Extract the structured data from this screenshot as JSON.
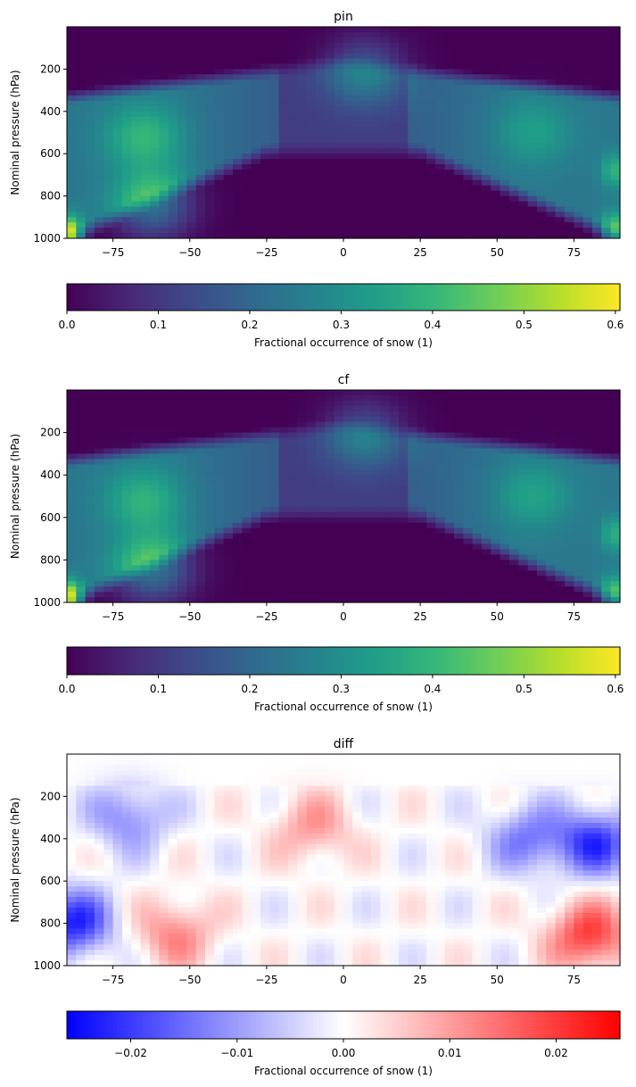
{
  "chart_data": [
    {
      "type": "heatmap",
      "title": "pin",
      "xlabel": "",
      "ylabel": "Nominal pressure (hPa)",
      "xlim": [
        -90,
        90
      ],
      "ylim": [
        1000,
        0
      ],
      "x_ticks": [
        -75,
        -50,
        -25,
        0,
        25,
        50,
        75
      ],
      "x_tick_labels": [
        "−75",
        "−50",
        "−25",
        "0",
        "25",
        "50",
        "75"
      ],
      "y_ticks": [
        200,
        400,
        600,
        800,
        1000
      ],
      "y_tick_labels": [
        "200",
        "400",
        "600",
        "800",
        "1000"
      ],
      "colormap": "viridis",
      "colorbar": {
        "label": "Fractional occurrence of snow (1)",
        "range": [
          0,
          0.605
        ],
        "ticks": [
          0,
          0.1,
          0.2,
          0.3,
          0.4,
          0.5,
          0.6
        ],
        "tick_labels": [
          "0.0",
          "0.1",
          "0.2",
          "0.3",
          "0.4",
          "0.5",
          "0.6"
        ]
      },
      "features": [
        {
          "lat": -62,
          "p": 840,
          "value": 0.42
        },
        {
          "lat": -65,
          "p": 520,
          "value": 0.36
        },
        {
          "lat": -89,
          "p": 990,
          "value": 0.6
        },
        {
          "lat": 7,
          "p": 210,
          "value": 0.37
        },
        {
          "lat": 88,
          "p": 960,
          "value": 0.42
        },
        {
          "lat": 88,
          "p": 680,
          "value": 0.35
        },
        {
          "lat": 62,
          "p": 500,
          "value": 0.3
        }
      ]
    },
    {
      "type": "heatmap",
      "title": "cf",
      "xlabel": "",
      "ylabel": "Nominal pressure (hPa)",
      "xlim": [
        -90,
        90
      ],
      "ylim": [
        1000,
        0
      ],
      "x_ticks": [
        -75,
        -50,
        -25,
        0,
        25,
        50,
        75
      ],
      "x_tick_labels": [
        "−75",
        "−50",
        "−25",
        "0",
        "25",
        "50",
        "75"
      ],
      "y_ticks": [
        200,
        400,
        600,
        800,
        1000
      ],
      "y_tick_labels": [
        "200",
        "400",
        "600",
        "800",
        "1000"
      ],
      "colormap": "viridis",
      "colorbar": {
        "label": "Fractional occurrence of snow (1)",
        "range": [
          0,
          0.605
        ],
        "ticks": [
          0,
          0.1,
          0.2,
          0.3,
          0.4,
          0.5,
          0.6
        ],
        "tick_labels": [
          "0.0",
          "0.1",
          "0.2",
          "0.3",
          "0.4",
          "0.5",
          "0.6"
        ]
      },
      "features": [
        {
          "lat": -62,
          "p": 840,
          "value": 0.43
        },
        {
          "lat": -65,
          "p": 520,
          "value": 0.35
        },
        {
          "lat": -89,
          "p": 990,
          "value": 0.6
        },
        {
          "lat": 7,
          "p": 210,
          "value": 0.36
        },
        {
          "lat": 88,
          "p": 960,
          "value": 0.41
        },
        {
          "lat": 88,
          "p": 680,
          "value": 0.34
        },
        {
          "lat": 62,
          "p": 500,
          "value": 0.31
        }
      ]
    },
    {
      "type": "heatmap",
      "title": "diff",
      "xlabel": "",
      "ylabel": "Nominal pressure (hPa)",
      "xlim": [
        -90,
        90
      ],
      "ylim": [
        1000,
        0
      ],
      "x_ticks": [
        -75,
        -50,
        -25,
        0,
        25,
        50,
        75
      ],
      "x_tick_labels": [
        "−75",
        "−50",
        "−25",
        "0",
        "25",
        "50",
        "75"
      ],
      "y_ticks": [
        200,
        400,
        600,
        800,
        1000
      ],
      "y_tick_labels": [
        "200",
        "400",
        "600",
        "800",
        "1000"
      ],
      "colormap": "bwr",
      "colorbar": {
        "label": "Fractional occurrence of snow (1)",
        "range": [
          -0.026,
          0.026
        ],
        "ticks": [
          -0.02,
          -0.01,
          0,
          0.01,
          0.02
        ],
        "tick_labels": [
          "−0.02",
          "−0.01",
          "0.00",
          "0.01",
          "0.02"
        ]
      },
      "features": [
        {
          "lat": -88,
          "p": 800,
          "value": -0.022
        },
        {
          "lat": -70,
          "p": 300,
          "value": -0.012
        },
        {
          "lat": -55,
          "p": 850,
          "value": 0.012
        },
        {
          "lat": -10,
          "p": 350,
          "value": 0.01
        },
        {
          "lat": 82,
          "p": 420,
          "value": -0.02
        },
        {
          "lat": 60,
          "p": 400,
          "value": -0.013
        },
        {
          "lat": 80,
          "p": 860,
          "value": 0.02
        }
      ]
    }
  ]
}
